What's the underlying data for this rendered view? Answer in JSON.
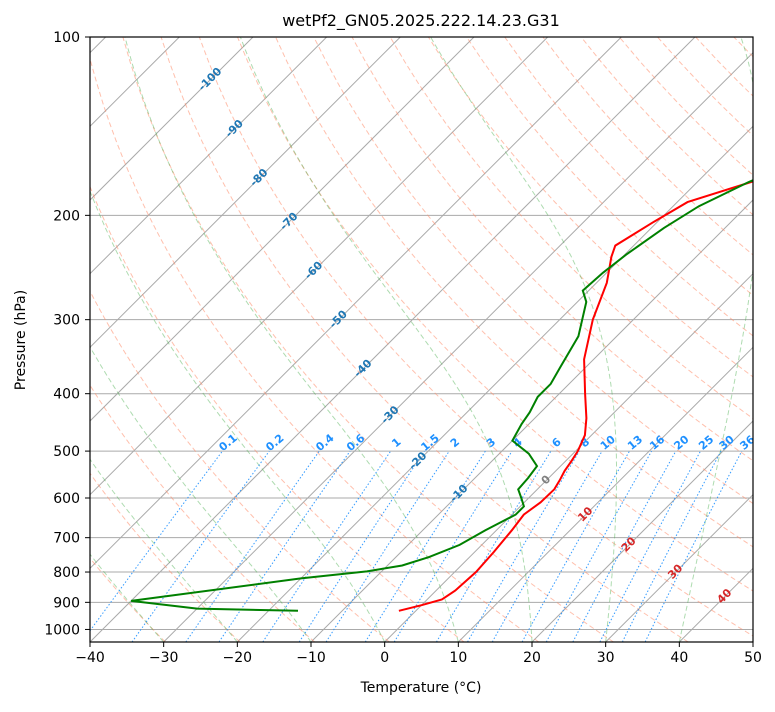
{
  "chart_data": {
    "type": "line",
    "title": "wetPf2_GN05.2025.222.14.23.G31",
    "xlabel": "Temperature (°C)",
    "ylabel": "Pressure (hPa)",
    "xlim": [
      -40,
      50
    ],
    "ylim": [
      1050,
      100
    ],
    "y_scale": "log",
    "x_ticks": [
      -40,
      -30,
      -20,
      -10,
      0,
      10,
      20,
      30,
      40,
      50
    ],
    "y_ticks": [
      100,
      200,
      300,
      400,
      500,
      600,
      700,
      800,
      900,
      1000
    ],
    "grid": true,
    "series": [
      {
        "color": "#ff0000",
        "points": [
          [
            -2.3,
            930
          ],
          [
            0,
            910
          ],
          [
            2,
            890
          ],
          [
            2.6,
            860
          ],
          [
            2.9,
            800
          ],
          [
            2.6,
            740
          ],
          [
            2.1,
            680
          ],
          [
            1.6,
            640
          ],
          [
            2.2,
            610
          ],
          [
            2.3,
            580
          ],
          [
            1.8,
            560
          ],
          [
            1.2,
            540
          ],
          [
            0.8,
            520
          ],
          [
            0.3,
            500
          ],
          [
            -0.9,
            470
          ],
          [
            -3,
            440
          ],
          [
            -6.5,
            400
          ],
          [
            -11.3,
            350
          ],
          [
            -15.5,
            300
          ],
          [
            -18.6,
            260
          ],
          [
            -21.5,
            235
          ],
          [
            -22.5,
            225
          ],
          [
            -20.5,
            205
          ],
          [
            -18.6,
            190
          ],
          [
            -12.4,
            175
          ],
          [
            -5.2,
            160
          ],
          [
            -1,
            150
          ],
          [
            1.5,
            140
          ],
          [
            3,
            130
          ],
          [
            4.8,
            120
          ],
          [
            6.5,
            110
          ],
          [
            8,
            103
          ]
        ]
      },
      {
        "color": "#008000",
        "points": [
          [
            -16,
            930
          ],
          [
            -30,
            922
          ],
          [
            -40,
            895
          ],
          [
            -20,
            820
          ],
          [
            -12,
            798
          ],
          [
            -8,
            780
          ],
          [
            -5.5,
            755
          ],
          [
            -3,
            720
          ],
          [
            -1.5,
            680
          ],
          [
            0.5,
            640
          ],
          [
            0.5,
            620
          ],
          [
            -1,
            600
          ],
          [
            -2.6,
            580
          ],
          [
            -2.8,
            555
          ],
          [
            -3.2,
            530
          ],
          [
            -6,
            505
          ],
          [
            -10,
            480
          ],
          [
            -11,
            450
          ],
          [
            -11.5,
            430
          ],
          [
            -12.5,
            405
          ],
          [
            -12.5,
            385
          ],
          [
            -13.5,
            360
          ],
          [
            -15.2,
            320
          ],
          [
            -18.8,
            280
          ],
          [
            -20.8,
            268
          ],
          [
            -20.5,
            250
          ],
          [
            -19.8,
            233
          ],
          [
            -18.3,
            210
          ],
          [
            -16.5,
            193
          ],
          [
            -13.1,
            176
          ],
          [
            -8.5,
            160
          ],
          [
            -4.8,
            140
          ],
          [
            -2.2,
            125
          ],
          [
            0.5,
            112
          ],
          [
            2,
            104
          ]
        ]
      }
    ],
    "dry_adiabats": {
      "color": "#ff8c69",
      "theta_K": [
        240,
        250,
        260,
        270,
        280,
        290,
        300,
        310,
        320,
        330,
        340,
        350,
        360,
        370,
        380,
        390,
        400,
        410,
        420,
        430,
        440,
        450,
        460,
        470
      ]
    },
    "moist_adiabats": {
      "color": "#4caf50",
      "start_C": [
        -40,
        -30,
        -20,
        -10,
        0,
        10,
        20,
        30,
        40
      ]
    },
    "mixing_ratio_lines": {
      "color": "#1e90ff",
      "values": [
        0.1,
        0.2,
        0.4,
        0.6,
        1,
        1.5,
        2,
        3,
        4,
        6,
        8,
        10,
        13,
        16,
        20,
        25,
        30,
        36
      ],
      "labels": [
        "0.1",
        "0.2",
        "0.4",
        "0.6",
        "1",
        "1.5",
        "2",
        "3",
        "4",
        "6",
        "8",
        "10",
        "13",
        "16",
        "20",
        "25",
        "30",
        "36"
      ]
    },
    "isotherm_labels": {
      "color": "#1f77b4",
      "labels": [
        "-100",
        "-90",
        "-80",
        "-70",
        "-60",
        "-50",
        "-40",
        "-30",
        "-20",
        "-10"
      ]
    },
    "warm_isotherm_labels": {
      "zero": "0",
      "zero_color": "#808080",
      "color": "#d62728",
      "labels": [
        "10",
        "20",
        "30",
        "40"
      ]
    }
  }
}
